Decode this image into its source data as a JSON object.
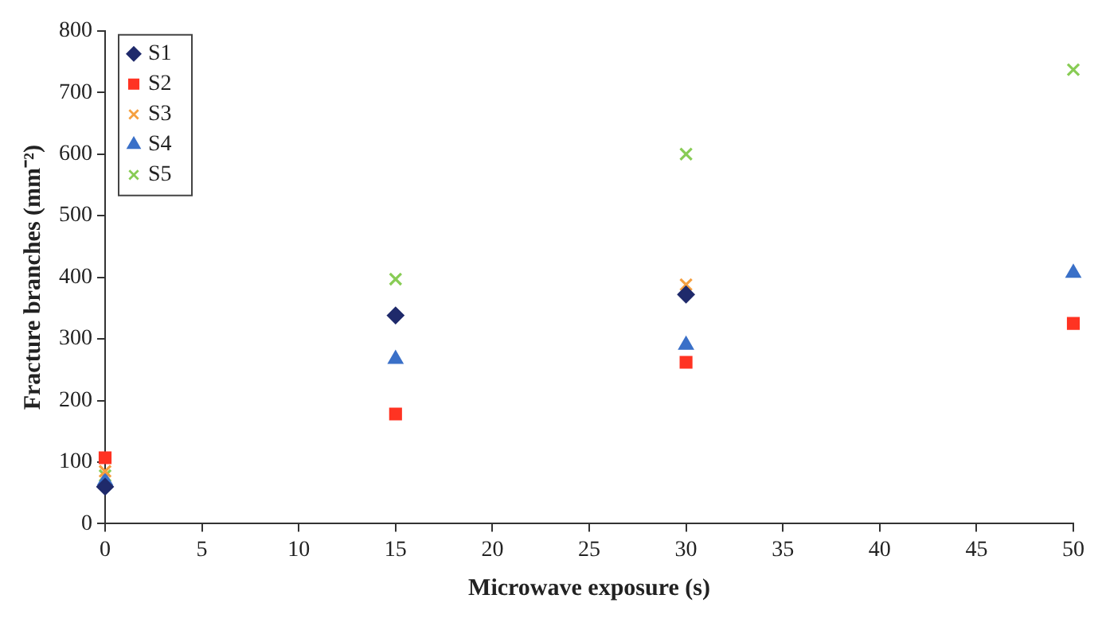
{
  "chart_data": {
    "type": "scatter",
    "xlabel": "Microwave exposure (s)",
    "ylabel": "Fracture branches (mm⁻²)",
    "x": [
      0,
      15,
      30,
      50
    ],
    "series": [
      {
        "name": "S1",
        "color": "#1f2a6b",
        "marker": "diamond",
        "values": [
          60,
          338,
          372,
          null
        ]
      },
      {
        "name": "S2",
        "color": "#ff3322",
        "marker": "square",
        "values": [
          107,
          178,
          262,
          325
        ]
      },
      {
        "name": "S3",
        "color": "#f5a040",
        "marker": "cross",
        "values": [
          85,
          null,
          388,
          null
        ]
      },
      {
        "name": "S4",
        "color": "#3a70c8",
        "marker": "triangle",
        "values": [
          70,
          267,
          290,
          407
        ]
      },
      {
        "name": "S5",
        "color": "#88cc55",
        "marker": "cross",
        "values": [
          78,
          397,
          600,
          737
        ]
      }
    ],
    "xlim": [
      0,
      50
    ],
    "xticks": [
      0,
      5,
      10,
      15,
      20,
      25,
      30,
      35,
      40,
      45,
      50
    ],
    "ylim": [
      0,
      800
    ],
    "yticks": [
      0,
      100,
      200,
      300,
      400,
      500,
      600,
      700,
      800
    ],
    "grid": false,
    "legend": "top left"
  }
}
